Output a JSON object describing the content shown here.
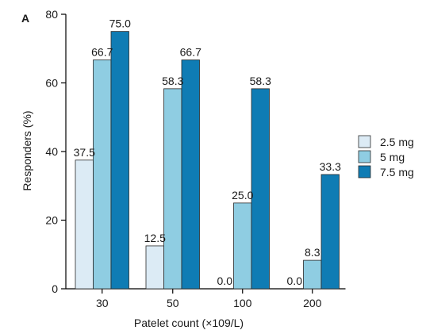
{
  "chart_data": {
    "type": "bar",
    "panel_label": "A",
    "categories": [
      "30",
      "50",
      "100",
      "200"
    ],
    "series": [
      {
        "name": "2.5 mg",
        "values": [
          37.5,
          12.5,
          0.0,
          0.0
        ],
        "labels": [
          "37.5",
          "12.5",
          "0.0",
          "0.0"
        ],
        "color": "#dcebf5"
      },
      {
        "name": "5 mg",
        "values": [
          66.7,
          58.3,
          25.0,
          8.3
        ],
        "labels": [
          "66.7",
          "58.3",
          "25.0",
          "8.3"
        ],
        "color": "#8fcde2"
      },
      {
        "name": "7.5 mg",
        "values": [
          75.0,
          66.7,
          58.3,
          33.3
        ],
        "labels": [
          "75.0",
          "66.7",
          "58.3",
          "33.3"
        ],
        "color": "#0f7cb4"
      }
    ],
    "xlabel": "Patelet count (×109/L)",
    "ylabel": "Responders (%)",
    "ylim": [
      0,
      80
    ],
    "yticks": [
      "0",
      "20",
      "40",
      "60",
      "80"
    ],
    "grid": false,
    "legend_position": "right"
  }
}
